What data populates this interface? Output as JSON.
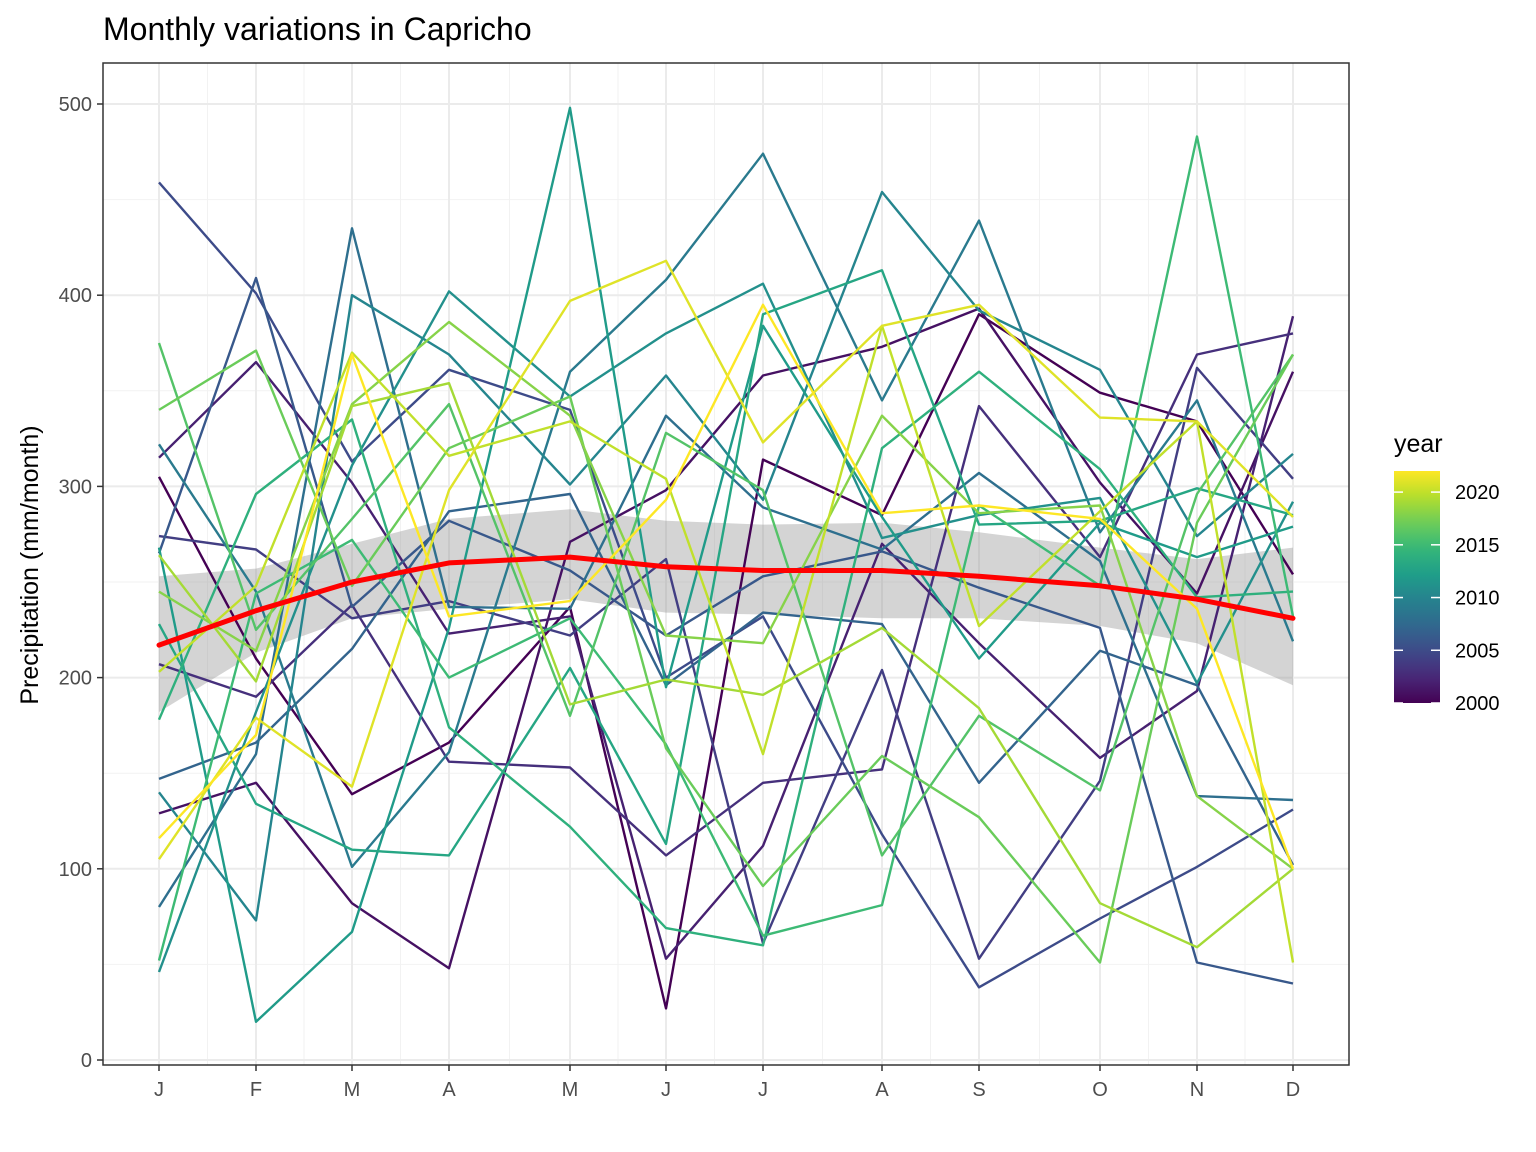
{
  "chart_data": {
    "type": "line",
    "title": "Monthly variations in Capricho",
    "xlabel": "",
    "ylabel": "Precipitation (mm/month)",
    "x_ticks": [
      "J",
      "F",
      "M",
      "A",
      "M",
      "J",
      "J",
      "A",
      "S",
      "O",
      "N",
      "D"
    ],
    "ylim": [
      0,
      520
    ],
    "y_ticks": [
      0,
      100,
      200,
      300,
      400,
      500
    ],
    "grid": true,
    "legend": {
      "title": "year",
      "placement": "right",
      "type": "colorbar",
      "ticks": [
        2000,
        2005,
        2010,
        2015,
        2020
      ],
      "range": [
        2000,
        2022
      ],
      "palette": [
        "#440154",
        "#482878",
        "#3E4A89",
        "#31688E",
        "#26828E",
        "#1F9E89",
        "#35B779",
        "#6DCD59",
        "#B4DE2C",
        "#FDE725"
      ]
    },
    "series": [
      {
        "year": 2000,
        "values": [
          305,
          210,
          139,
          166,
          237,
          27,
          314,
          285,
          390,
          349,
          334,
          254
        ]
      },
      {
        "year": 2001,
        "values": [
          129,
          145,
          82,
          48,
          271,
          298,
          358,
          373,
          393,
          302,
          244,
          360
        ]
      },
      {
        "year": 2002,
        "values": [
          315,
          365,
          302,
          223,
          232,
          53,
          112,
          270,
          218,
          158,
          193,
          389
        ]
      },
      {
        "year": 2003,
        "values": [
          207,
          190,
          238,
          156,
          153,
          107,
          145,
          152,
          342,
          263,
          369,
          380
        ]
      },
      {
        "year": 2004,
        "values": [
          274,
          267,
          231,
          240,
          222,
          262,
          61,
          204,
          53,
          146,
          362,
          304
        ]
      },
      {
        "year": 2005,
        "values": [
          459,
          401,
          313,
          361,
          340,
          200,
          232,
          118,
          38,
          74,
          101,
          131
        ]
      },
      {
        "year": 2006,
        "values": [
          265,
          409,
          237,
          282,
          256,
          222,
          253,
          266,
          247,
          226,
          51,
          40
        ]
      },
      {
        "year": 2007,
        "values": [
          147,
          166,
          215,
          287,
          296,
          196,
          234,
          228,
          145,
          214,
          196,
          102
        ]
      },
      {
        "year": 2008,
        "values": [
          80,
          160,
          435,
          237,
          236,
          337,
          289,
          267,
          307,
          261,
          138,
          136
        ]
      },
      {
        "year": 2009,
        "values": [
          322,
          245,
          101,
          161,
          360,
          408,
          474,
          345,
          439,
          276,
          345,
          219
        ]
      },
      {
        "year": 2010,
        "values": [
          140,
          73,
          400,
          369,
          301,
          358,
          293,
          454,
          392,
          361,
          274,
          317
        ]
      },
      {
        "year": 2011,
        "values": [
          46,
          182,
          311,
          402,
          347,
          380,
          406,
          273,
          285,
          294,
          197,
          292
        ]
      },
      {
        "year": 2012,
        "values": [
          268,
          20,
          67,
          226,
          498,
          195,
          384,
          284,
          210,
          281,
          263,
          279
        ]
      },
      {
        "year": 2013,
        "values": [
          228,
          134,
          110,
          107,
          205,
          113,
          390,
          413,
          280,
          282,
          299,
          285
        ]
      },
      {
        "year": 2014,
        "values": [
          178,
          296,
          335,
          174,
          122,
          69,
          60,
          320,
          360,
          309,
          242,
          245
        ]
      },
      {
        "year": 2015,
        "values": [
          52,
          244,
          272,
          200,
          231,
          165,
          65,
          81,
          290,
          248,
          483,
          232
        ]
      },
      {
        "year": 2016,
        "values": [
          375,
          225,
          283,
          343,
          180,
          328,
          298,
          107,
          180,
          141,
          296,
          369
        ]
      },
      {
        "year": 2017,
        "values": [
          340,
          371,
          248,
          320,
          347,
          163,
          91,
          159,
          127,
          51,
          281,
          369
        ]
      },
      {
        "year": 2018,
        "values": [
          245,
          214,
          343,
          386,
          337,
          222,
          218,
          337,
          286,
          290,
          138,
          100
        ]
      },
      {
        "year": 2019,
        "values": [
          264,
          198,
          342,
          354,
          186,
          199,
          191,
          226,
          184,
          82,
          59,
          100
        ]
      },
      {
        "year": 2020,
        "values": [
          203,
          248,
          370,
          316,
          334,
          304,
          160,
          384,
          227,
          287,
          334,
          51
        ]
      },
      {
        "year": 2021,
        "values": [
          105,
          179,
          143,
          298,
          397,
          418,
          323,
          384,
          395,
          336,
          334,
          284
        ]
      },
      {
        "year": 2022,
        "values": [
          116,
          170,
          369,
          232,
          240,
          293,
          395,
          286,
          290,
          283,
          236,
          100
        ]
      }
    ],
    "smooth": {
      "color": "#FF0000",
      "values": [
        217,
        235,
        250,
        260,
        263,
        258,
        256,
        256,
        253,
        248,
        241,
        231
      ],
      "ci_lower": [
        182,
        213,
        231,
        236,
        241,
        234,
        233,
        231,
        231,
        227,
        218,
        196
      ],
      "ci_upper": [
        253,
        257,
        270,
        283,
        288,
        282,
        280,
        281,
        276,
        268,
        262,
        268
      ]
    }
  }
}
